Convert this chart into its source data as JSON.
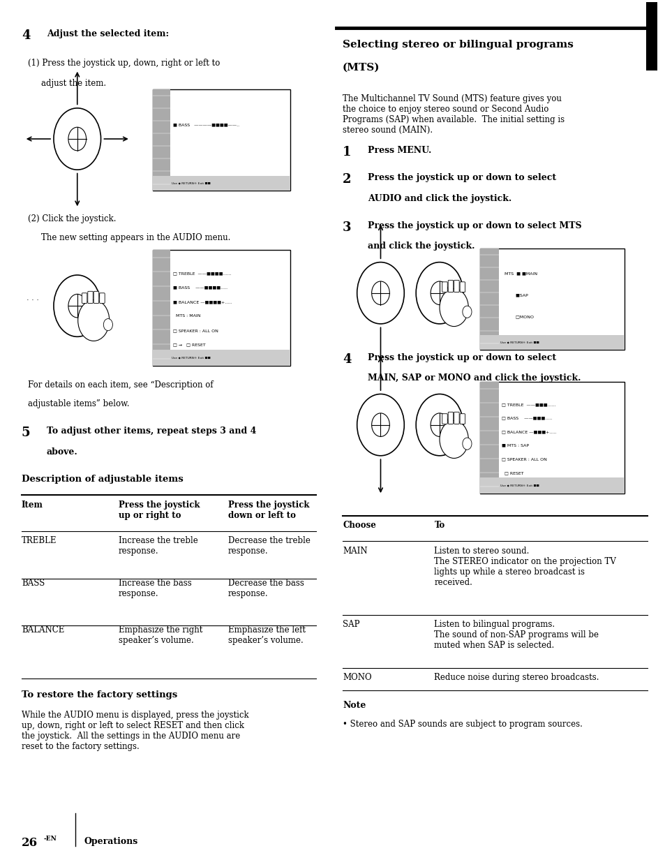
{
  "bg_color": "#ffffff",
  "text_color": "#000000",
  "page_width": 9.54,
  "page_height": 12.32,
  "table_rows": [
    [
      "TREBLE",
      "Increase the treble\nresponse.",
      "Decrease the treble\nresponse."
    ],
    [
      "BASS",
      "Increase the bass\nresponse.",
      "Decrease the bass\nresponse."
    ],
    [
      "BALANCE",
      "Emphasize the right\nspeaker’s volume.",
      "Emphasize the left\nspeaker’s volume."
    ]
  ],
  "right_table_rows": [
    [
      "MAIN",
      "Listen to stereo sound.\nThe STEREO indicator on the projection TV\nlights up while a stereo broadcast is\nreceived."
    ],
    [
      "SAP",
      "Listen to bilingual programs.\nThe sound of non-SAP programs will be\nmuted when SAP is selected."
    ],
    [
      "MONO",
      "Reduce noise during stereo broadcasts."
    ]
  ]
}
